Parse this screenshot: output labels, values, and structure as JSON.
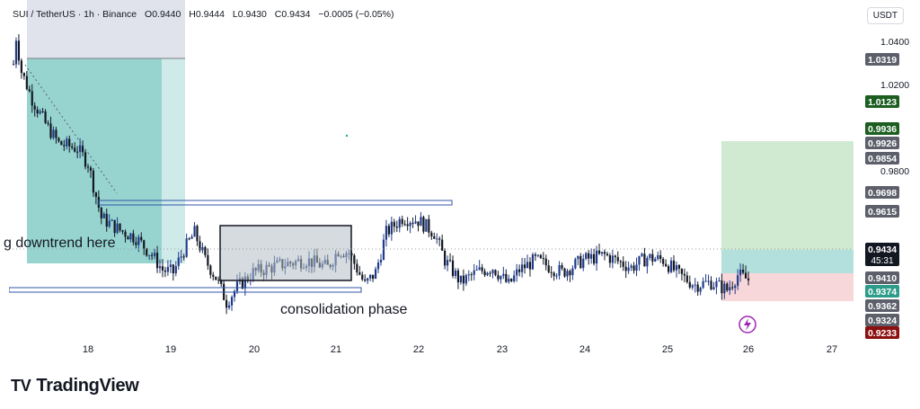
{
  "header": {
    "symbol": "SUI / TetherUS · 1h · Binance",
    "open": "O0.9440",
    "high": "H0.9444",
    "low": "L0.9430",
    "close": "C0.9434",
    "change": "−0.0005 (−0.05%)"
  },
  "currency_button": "USDT",
  "brand": {
    "mark": "TV",
    "name": "TradingView"
  },
  "annotations": {
    "left_note": "g downtrend here",
    "box_note": "consolidation phase"
  },
  "alert_icon": "lightning-icon",
  "countdown": "45:31",
  "chart_data": {
    "type": "candlestick",
    "symbol": "SUI / TetherUS",
    "interval": "1h",
    "exchange": "Binance",
    "x_ticks": [
      "18",
      "19",
      "20",
      "21",
      "22",
      "23",
      "24",
      "25",
      "26",
      "27"
    ],
    "y_ticks": [
      "1.0400",
      "1.0200",
      "0.9800"
    ],
    "ylim": [
      0.921,
      1.045
    ],
    "price_labels": [
      {
        "value": "1.0319",
        "color": "#5d606b"
      },
      {
        "value": "1.0123",
        "color": "#1b5e20"
      },
      {
        "value": "0.9936",
        "color": "#1b5e20"
      },
      {
        "value": "0.9926",
        "color": "#5d606b"
      },
      {
        "value": "0.9854",
        "color": "#5d606b"
      },
      {
        "value": "0.9698",
        "color": "#5d606b"
      },
      {
        "value": "0.9615",
        "color": "#5d606b"
      },
      {
        "value": "0.9434",
        "color": "#131722"
      },
      {
        "value": "0.9410",
        "color": "#5d606b"
      },
      {
        "value": "0.9374",
        "color": "#2e9c8a"
      },
      {
        "value": "0.9362",
        "color": "#5d606b"
      },
      {
        "value": "0.9324",
        "color": "#5d606b"
      },
      {
        "value": "0.9233",
        "color": "#8b1010"
      }
    ],
    "colors": {
      "up": "#1e3a8a",
      "down": "#131722",
      "long_target": "#c8e6c9",
      "long_stop": "#f8d7da",
      "short_zone": "#26a69a"
    },
    "anchors": [
      [
        0,
        1.03
      ],
      [
        1,
        1.041
      ],
      [
        3,
        1.027
      ],
      [
        7,
        1.016
      ],
      [
        12,
        1.006
      ],
      [
        17,
        0.998
      ],
      [
        24,
        0.996
      ],
      [
        28,
        0.99
      ],
      [
        33,
        0.968
      ],
      [
        40,
        0.963
      ],
      [
        46,
        0.96
      ],
      [
        52,
        0.953
      ],
      [
        56,
        0.947
      ],
      [
        60,
        0.946
      ],
      [
        64,
        0.955
      ],
      [
        68,
        0.962
      ],
      [
        72,
        0.951
      ],
      [
        76,
        0.944
      ],
      [
        80,
        0.934
      ],
      [
        84,
        0.94
      ],
      [
        90,
        0.946
      ],
      [
        100,
        0.949
      ],
      [
        110,
        0.951
      ],
      [
        118,
        0.948
      ],
      [
        122,
        0.955
      ],
      [
        126,
        0.954
      ],
      [
        132,
        0.941
      ],
      [
        136,
        0.946
      ],
      [
        140,
        0.962
      ],
      [
        146,
        0.968
      ],
      [
        152,
        0.967
      ],
      [
        158,
        0.962
      ],
      [
        162,
        0.951
      ],
      [
        168,
        0.942
      ],
      [
        174,
        0.946
      ],
      [
        180,
        0.948
      ],
      [
        186,
        0.941
      ],
      [
        190,
        0.947
      ],
      [
        196,
        0.951
      ],
      [
        206,
        0.946
      ],
      [
        214,
        0.951
      ],
      [
        222,
        0.953
      ],
      [
        232,
        0.948
      ],
      [
        238,
        0.952
      ],
      [
        244,
        0.951
      ],
      [
        250,
        0.945
      ],
      [
        256,
        0.941
      ],
      [
        262,
        0.942
      ],
      [
        268,
        0.939
      ],
      [
        272,
        0.945
      ],
      [
        276,
        0.943
      ]
    ]
  }
}
